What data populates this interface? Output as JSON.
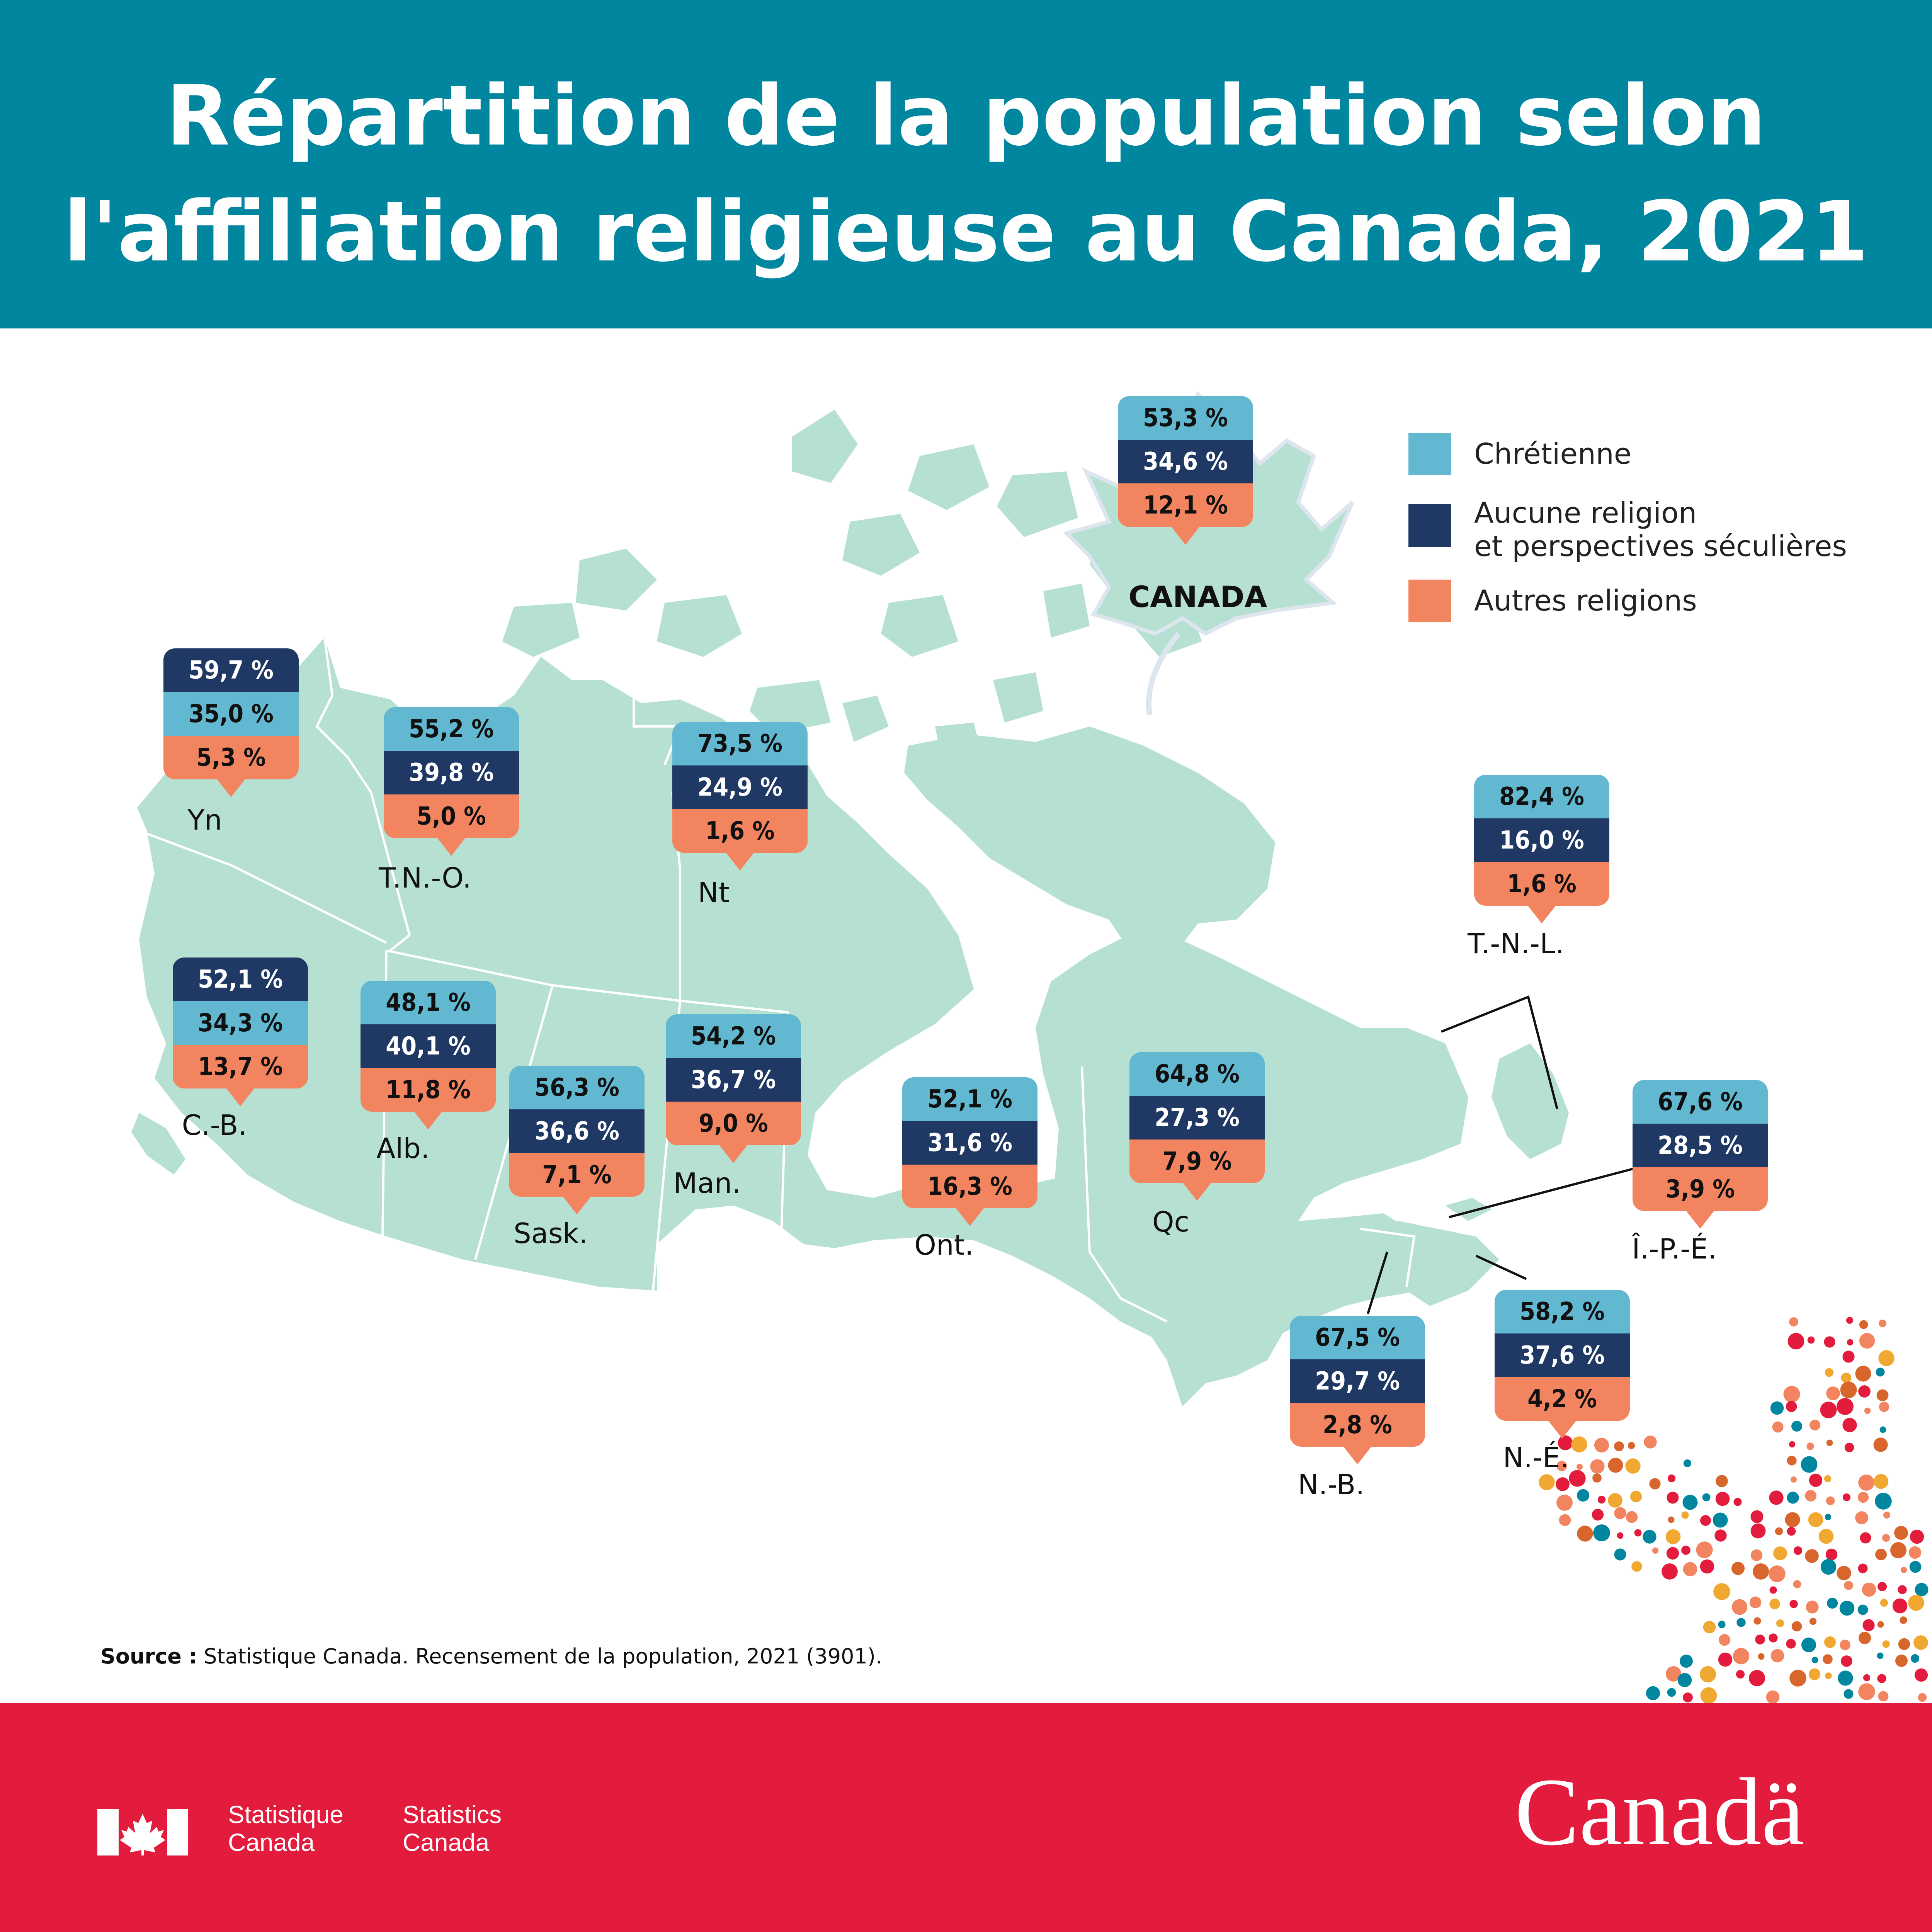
{
  "title": {
    "line1": "Répartition de la population selon",
    "line2": "l'affiliation religieuse au Canada, 2021"
  },
  "colors": {
    "header": "#00869f",
    "christian": "#62b8d0",
    "none": "#1f3864",
    "other": "#f28560",
    "land": "#b6e0d2",
    "footer": "#e31c3d"
  },
  "legend": {
    "christian": "Chrétienne",
    "none_line1": "Aucune religion",
    "none_line2": "et perspectives séculières",
    "other": "Autres religions"
  },
  "canada": {
    "label": "CANADA",
    "christian": "53,3 %",
    "none": "34,6 %",
    "other": "12,1 %"
  },
  "regions": [
    {
      "name": "Yn",
      "values": [
        "59,7 %",
        "35,0 %",
        "5,3 %"
      ],
      "order": [
        "none",
        "christian",
        "other"
      ]
    },
    {
      "name": "T.N.-O.",
      "values": [
        "55,2 %",
        "39,8 %",
        "5,0 %"
      ],
      "order": [
        "christian",
        "none",
        "other"
      ]
    },
    {
      "name": "Nt",
      "values": [
        "73,5 %",
        "24,9 %",
        "1,6 %"
      ],
      "order": [
        "christian",
        "none",
        "other"
      ]
    },
    {
      "name": "C.-B.",
      "values": [
        "52,1 %",
        "34,3 %",
        "13,7 %"
      ],
      "order": [
        "none",
        "christian",
        "other"
      ]
    },
    {
      "name": "Alb.",
      "values": [
        "48,1 %",
        "40,1 %",
        "11,8 %"
      ],
      "order": [
        "christian",
        "none",
        "other"
      ]
    },
    {
      "name": "Sask.",
      "values": [
        "56,3 %",
        "36,6 %",
        "7,1 %"
      ],
      "order": [
        "christian",
        "none",
        "other"
      ]
    },
    {
      "name": "Man.",
      "values": [
        "54,2 %",
        "36,7 %",
        "9,0 %"
      ],
      "order": [
        "christian",
        "none",
        "other"
      ]
    },
    {
      "name": "Ont.",
      "values": [
        "52,1 %",
        "31,6 %",
        "16,3 %"
      ],
      "order": [
        "christian",
        "none",
        "other"
      ]
    },
    {
      "name": "Qc",
      "values": [
        "64,8 %",
        "27,3 %",
        "7,9 %"
      ],
      "order": [
        "christian",
        "none",
        "other"
      ]
    },
    {
      "name": "T.-N.-L.",
      "values": [
        "82,4 %",
        "16,0 %",
        "1,6 %"
      ],
      "order": [
        "christian",
        "none",
        "other"
      ]
    },
    {
      "name": "Î.-P.-É.",
      "values": [
        "67,6 %",
        "28,5 %",
        "3,9 %"
      ],
      "order": [
        "christian",
        "none",
        "other"
      ]
    },
    {
      "name": "N.-B.",
      "values": [
        "67,5 %",
        "29,7 %",
        "2,8 %"
      ],
      "order": [
        "christian",
        "none",
        "other"
      ]
    },
    {
      "name": "N.-É.",
      "values": [
        "58,2 %",
        "37,6 %",
        "4,2 %"
      ],
      "order": [
        "christian",
        "none",
        "other"
      ]
    }
  ],
  "source": {
    "label": "Source :",
    "text": " Statistique Canada. Recensement de la population, 2021 (3901)."
  },
  "footer": {
    "agency_fr_1": "Statistique",
    "agency_fr_2": "Canada",
    "agency_en_1": "Statistics",
    "agency_en_2": "Canada",
    "wordmark": "Canadä"
  }
}
